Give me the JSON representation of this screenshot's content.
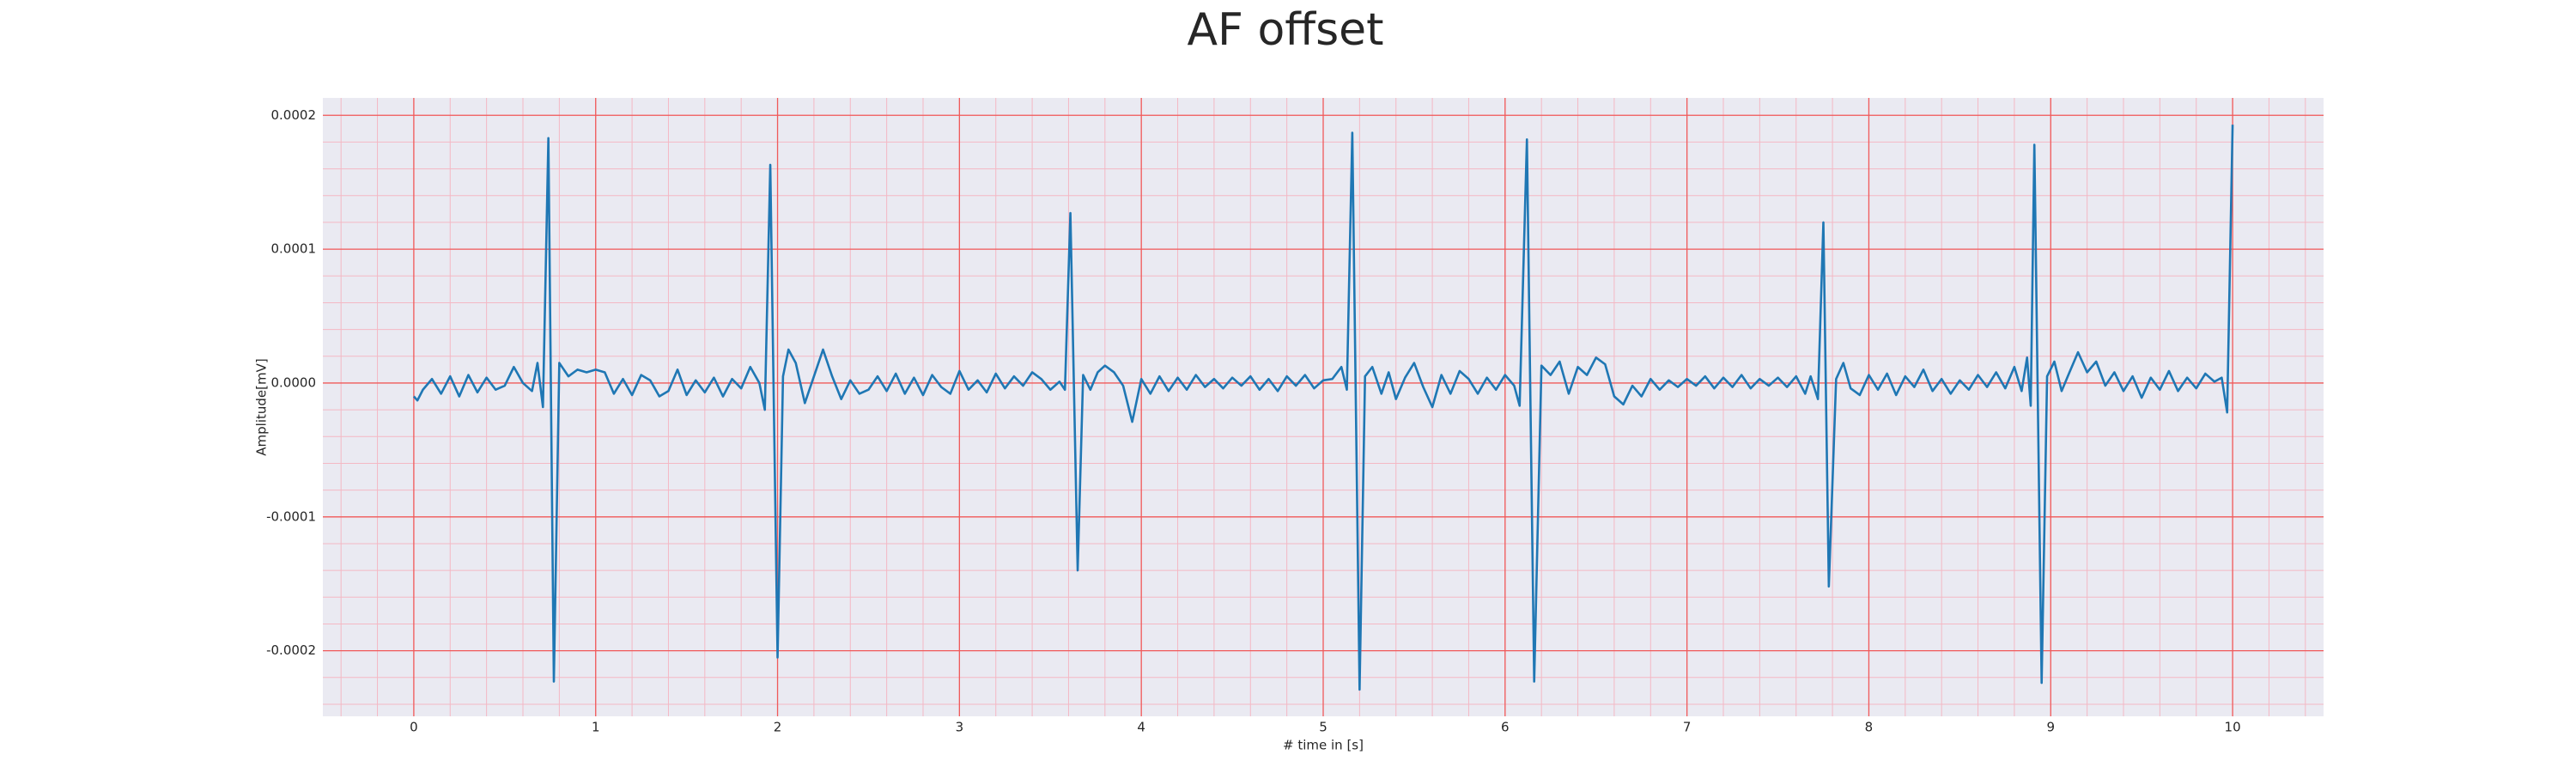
{
  "chart_data": {
    "type": "line",
    "title": "AF offset",
    "x_label": "# time in [s]",
    "y_label": "Amplitude[mV]",
    "color": "#1f77b4",
    "grid": true,
    "minor_grid": true,
    "xlim": [
      -0.5,
      10.5
    ],
    "xticks": [
      0,
      1,
      2,
      3,
      4,
      5,
      6,
      7,
      8,
      9,
      10
    ],
    "ylim": [
      -0.000249,
      0.000213
    ],
    "yticks": [
      {
        "value": -0.0002,
        "label": "-0.0002"
      },
      {
        "value": -0.0001,
        "label": "-0.0001"
      },
      {
        "value": 0,
        "label": "0.0000"
      },
      {
        "value": 0.0001,
        "label": "0.0001"
      },
      {
        "value": 0.0002,
        "label": "0.0002"
      }
    ],
    "x": [
      0,
      0.02,
      0.05,
      0.1,
      0.15,
      0.2,
      0.25,
      0.3,
      0.35,
      0.4,
      0.45,
      0.5,
      0.55,
      0.6,
      0.65,
      0.68,
      0.71,
      0.74,
      0.77,
      0.8,
      0.85,
      0.9,
      0.95,
      1.0,
      1.05,
      1.1,
      1.15,
      1.2,
      1.25,
      1.3,
      1.35,
      1.4,
      1.45,
      1.5,
      1.55,
      1.6,
      1.65,
      1.7,
      1.75,
      1.8,
      1.85,
      1.9,
      1.93,
      1.96,
      2.0,
      2.03,
      2.06,
      2.1,
      2.15,
      2.2,
      2.25,
      2.3,
      2.35,
      2.4,
      2.45,
      2.5,
      2.55,
      2.6,
      2.65,
      2.7,
      2.75,
      2.8,
      2.85,
      2.9,
      2.95,
      3.0,
      3.05,
      3.1,
      3.15,
      3.2,
      3.25,
      3.3,
      3.35,
      3.4,
      3.45,
      3.5,
      3.55,
      3.58,
      3.61,
      3.65,
      3.68,
      3.72,
      3.76,
      3.8,
      3.85,
      3.9,
      3.95,
      4.0,
      4.05,
      4.1,
      4.15,
      4.2,
      4.25,
      4.3,
      4.35,
      4.4,
      4.45,
      4.5,
      4.55,
      4.6,
      4.65,
      4.7,
      4.75,
      4.8,
      4.85,
      4.9,
      4.95,
      5.0,
      5.05,
      5.1,
      5.13,
      5.16,
      5.2,
      5.23,
      5.27,
      5.32,
      5.36,
      5.4,
      5.45,
      5.5,
      5.55,
      5.6,
      5.65,
      5.7,
      5.75,
      5.8,
      5.85,
      5.9,
      5.95,
      6.0,
      6.05,
      6.08,
      6.12,
      6.16,
      6.2,
      6.25,
      6.3,
      6.35,
      6.4,
      6.45,
      6.5,
      6.55,
      6.6,
      6.65,
      6.7,
      6.75,
      6.8,
      6.85,
      6.9,
      6.95,
      7.0,
      7.05,
      7.1,
      7.15,
      7.2,
      7.25,
      7.3,
      7.35,
      7.4,
      7.45,
      7.5,
      7.55,
      7.6,
      7.65,
      7.68,
      7.72,
      7.75,
      7.78,
      7.82,
      7.86,
      7.9,
      7.95,
      8.0,
      8.05,
      8.1,
      8.15,
      8.2,
      8.25,
      8.3,
      8.35,
      8.4,
      8.45,
      8.5,
      8.55,
      8.6,
      8.65,
      8.7,
      8.75,
      8.8,
      8.84,
      8.87,
      8.89,
      8.91,
      8.95,
      8.98,
      9.02,
      9.06,
      9.1,
      9.15,
      9.2,
      9.25,
      9.3,
      9.35,
      9.4,
      9.45,
      9.5,
      9.55,
      9.6,
      9.65,
      9.7,
      9.75,
      9.8,
      9.85,
      9.9,
      9.94,
      9.97,
      10.0
    ],
    "values": [
      -1e-05,
      -1.3e-05,
      -5e-06,
      3e-06,
      -8e-06,
      5e-06,
      -1e-05,
      6e-06,
      -7e-06,
      4e-06,
      -5e-06,
      -2e-06,
      1.2e-05,
      0,
      -6e-06,
      1.5e-05,
      -1.8e-05,
      0.000183,
      -0.000223,
      1.5e-05,
      5e-06,
      1e-05,
      8e-06,
      1e-05,
      8e-06,
      -8e-06,
      3e-06,
      -9e-06,
      6e-06,
      2e-06,
      -1e-05,
      -6e-06,
      1e-05,
      -9e-06,
      2e-06,
      -7e-06,
      4e-06,
      -1e-05,
      3e-06,
      -4e-06,
      1.2e-05,
      0,
      -2e-05,
      0.000163,
      -0.000205,
      5e-06,
      2.5e-05,
      1.5e-05,
      -1.5e-05,
      5e-06,
      2.5e-05,
      5e-06,
      -1.2e-05,
      2e-06,
      -8e-06,
      -5e-06,
      5e-06,
      -6e-06,
      7e-06,
      -8e-06,
      4e-06,
      -9e-06,
      6e-06,
      -3e-06,
      -8e-06,
      9e-06,
      -5e-06,
      2e-06,
      -7e-06,
      7e-06,
      -4e-06,
      5e-06,
      -2e-06,
      8e-06,
      3e-06,
      -5e-06,
      1e-06,
      -5e-06,
      0.000127,
      -0.00014,
      6e-06,
      -5e-06,
      8e-06,
      1.3e-05,
      8e-06,
      -2e-06,
      -2.9e-05,
      3e-06,
      -8e-06,
      5e-06,
      -6e-06,
      4e-06,
      -5e-06,
      6e-06,
      -3e-06,
      3e-06,
      -4e-06,
      4e-06,
      -2e-06,
      5e-06,
      -5e-06,
      3e-06,
      -6e-06,
      5e-06,
      -2e-06,
      6e-06,
      -4e-06,
      2e-06,
      3e-06,
      1.2e-05,
      -5e-06,
      0.000187,
      -0.000229,
      5e-06,
      1.2e-05,
      -8e-06,
      8e-06,
      -1.2e-05,
      4e-06,
      1.5e-05,
      -3e-06,
      -1.8e-05,
      6e-06,
      -8e-06,
      9e-06,
      3e-06,
      -8e-06,
      4e-06,
      -5e-06,
      6e-06,
      -2e-06,
      -1.7e-05,
      0.000182,
      -0.000223,
      1.3e-05,
      6e-06,
      1.6e-05,
      -8e-06,
      1.2e-05,
      6e-06,
      1.9e-05,
      1.4e-05,
      -1e-05,
      -1.6e-05,
      -2e-06,
      -1e-05,
      3e-06,
      -5e-06,
      2e-06,
      -3e-06,
      3e-06,
      -2e-06,
      5e-06,
      -4e-06,
      4e-06,
      -3e-06,
      6e-06,
      -4e-06,
      3e-06,
      -2e-06,
      4e-06,
      -3e-06,
      5e-06,
      -8e-06,
      5e-06,
      -1.2e-05,
      0.00012,
      -0.000152,
      3e-06,
      1.5e-05,
      -4e-06,
      -9e-06,
      6e-06,
      -5e-06,
      7e-06,
      -9e-06,
      5e-06,
      -3e-06,
      1e-05,
      -6e-06,
      3e-06,
      -8e-06,
      2e-06,
      -5e-06,
      6e-06,
      -3e-06,
      8e-06,
      -4e-06,
      1.2e-05,
      -6e-06,
      1.9e-05,
      -1.7e-05,
      0.000178,
      -0.000224,
      5e-06,
      1.6e-05,
      -6e-06,
      7e-06,
      2.3e-05,
      8e-06,
      1.6e-05,
      -2e-06,
      8e-06,
      -6e-06,
      5e-06,
      -1.1e-05,
      4e-06,
      -5e-06,
      9e-06,
      -6e-06,
      4e-06,
      -4e-06,
      7e-06,
      1e-06,
      4e-06,
      -2.2e-05,
      0.000193
    ]
  }
}
